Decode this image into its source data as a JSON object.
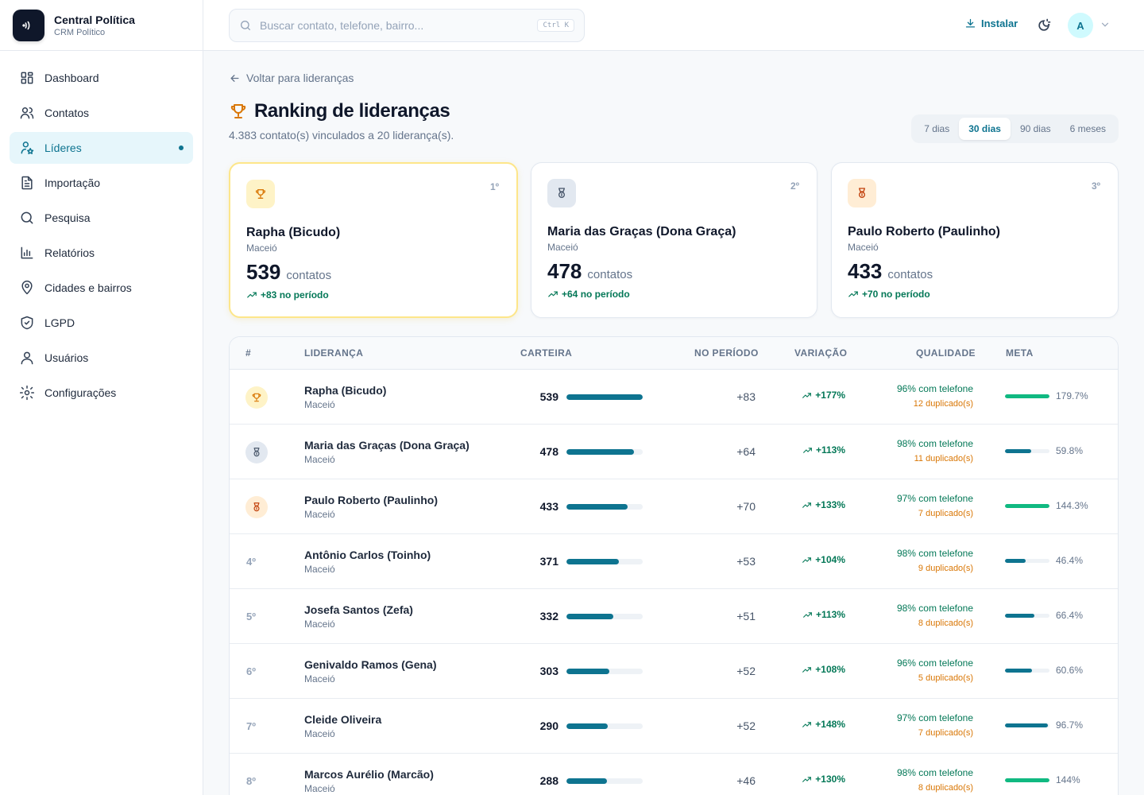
{
  "brand": {
    "title": "Central Política",
    "subtitle": "CRM Político"
  },
  "nav": [
    {
      "label": "Dashboard",
      "icon": "grid-icon",
      "active": false
    },
    {
      "label": "Contatos",
      "icon": "users-icon",
      "active": false
    },
    {
      "label": "Líderes",
      "icon": "user-star-icon",
      "active": true
    },
    {
      "label": "Importação",
      "icon": "file-import-icon",
      "active": false
    },
    {
      "label": "Pesquisa",
      "icon": "search-icon",
      "active": false
    },
    {
      "label": "Relatórios",
      "icon": "bar-chart-icon",
      "active": false
    },
    {
      "label": "Cidades e bairros",
      "icon": "map-pin-icon",
      "active": false
    },
    {
      "label": "LGPD",
      "icon": "shield-check-icon",
      "active": false
    },
    {
      "label": "Usuários",
      "icon": "user-icon",
      "active": false
    },
    {
      "label": "Configurações",
      "icon": "gear-icon",
      "active": false
    }
  ],
  "topbar": {
    "search_placeholder": "Buscar contato, telefone, bairro...",
    "search_value": "",
    "shortcut": "Ctrl K",
    "install_label": "Instalar",
    "avatar_initial": "A"
  },
  "page": {
    "back_label": "Voltar para lideranças",
    "title": "Ranking de lideranças",
    "subtitle": "4.383 contato(s) vinculados a 20 liderança(s).",
    "periods": [
      "7 dias",
      "30 dias",
      "90 dias",
      "6 meses"
    ],
    "active_period": 1
  },
  "podium": [
    {
      "pos": "1º",
      "name": "Rapha (Bicudo)",
      "city": "Maceió",
      "count": "539",
      "count_label": "contatos",
      "delta": "+83 no período",
      "medal": "gold"
    },
    {
      "pos": "2º",
      "name": "Maria das Graças (Dona Graça)",
      "city": "Maceió",
      "count": "478",
      "count_label": "contatos",
      "delta": "+64 no período",
      "medal": "silver"
    },
    {
      "pos": "3º",
      "name": "Paulo Roberto (Paulinho)",
      "city": "Maceió",
      "count": "433",
      "count_label": "contatos",
      "delta": "+70 no período",
      "medal": "bronze"
    }
  ],
  "table": {
    "headers": {
      "rank": "#",
      "leader": "LIDERANÇA",
      "portfolio": "CARTEIRA",
      "period": "NO PERÍODO",
      "variation": "VARIAÇÃO",
      "quality": "QUALIDADE",
      "goal": "META"
    },
    "max_portfolio": 539,
    "rows": [
      {
        "rank": "",
        "medal": "gold",
        "name": "Rapha (Bicudo)",
        "city": "Maceió",
        "portfolio": 539,
        "period": "+83",
        "variation": "+177%",
        "quality": "96% com telefone",
        "duplicates": "12 duplicado(s)",
        "goal": "179.7%",
        "goal_value": 179.7
      },
      {
        "rank": "",
        "medal": "silver",
        "name": "Maria das Graças (Dona Graça)",
        "city": "Maceió",
        "portfolio": 478,
        "period": "+64",
        "variation": "+113%",
        "quality": "98% com telefone",
        "duplicates": "11 duplicado(s)",
        "goal": "59.8%",
        "goal_value": 59.8
      },
      {
        "rank": "",
        "medal": "bronze",
        "name": "Paulo Roberto (Paulinho)",
        "city": "Maceió",
        "portfolio": 433,
        "period": "+70",
        "variation": "+133%",
        "quality": "97% com telefone",
        "duplicates": "7 duplicado(s)",
        "goal": "144.3%",
        "goal_value": 144.3
      },
      {
        "rank": "4º",
        "medal": "",
        "name": "Antônio Carlos (Toinho)",
        "city": "Maceió",
        "portfolio": 371,
        "period": "+53",
        "variation": "+104%",
        "quality": "98% com telefone",
        "duplicates": "9 duplicado(s)",
        "goal": "46.4%",
        "goal_value": 46.4
      },
      {
        "rank": "5º",
        "medal": "",
        "name": "Josefa Santos (Zefa)",
        "city": "Maceió",
        "portfolio": 332,
        "period": "+51",
        "variation": "+113%",
        "quality": "98% com telefone",
        "duplicates": "8 duplicado(s)",
        "goal": "66.4%",
        "goal_value": 66.4
      },
      {
        "rank": "6º",
        "medal": "",
        "name": "Genivaldo Ramos (Gena)",
        "city": "Maceió",
        "portfolio": 303,
        "period": "+52",
        "variation": "+108%",
        "quality": "96% com telefone",
        "duplicates": "5 duplicado(s)",
        "goal": "60.6%",
        "goal_value": 60.6
      },
      {
        "rank": "7º",
        "medal": "",
        "name": "Cleide Oliveira",
        "city": "Maceió",
        "portfolio": 290,
        "period": "+52",
        "variation": "+148%",
        "quality": "97% com telefone",
        "duplicates": "7 duplicado(s)",
        "goal": "96.7%",
        "goal_value": 96.7
      },
      {
        "rank": "8º",
        "medal": "",
        "name": "Marcos Aurélio (Marcão)",
        "city": "Maceió",
        "portfolio": 288,
        "period": "+46",
        "variation": "+130%",
        "quality": "98% com telefone",
        "duplicates": "8 duplicado(s)",
        "goal": "144%",
        "goal_value": 144
      }
    ]
  },
  "colors": {
    "accent": "#0e7490",
    "success": "#047857",
    "goal_met": "#10b981",
    "goal_partial": "#0e7490",
    "warning": "#d97706",
    "gold_bg": "#fef3c7",
    "gold_fg": "#d97706",
    "silver_bg": "#e2e8f0",
    "silver_fg": "#475569",
    "bronze_bg": "#ffedd5",
    "bronze_fg": "#c2410c"
  }
}
